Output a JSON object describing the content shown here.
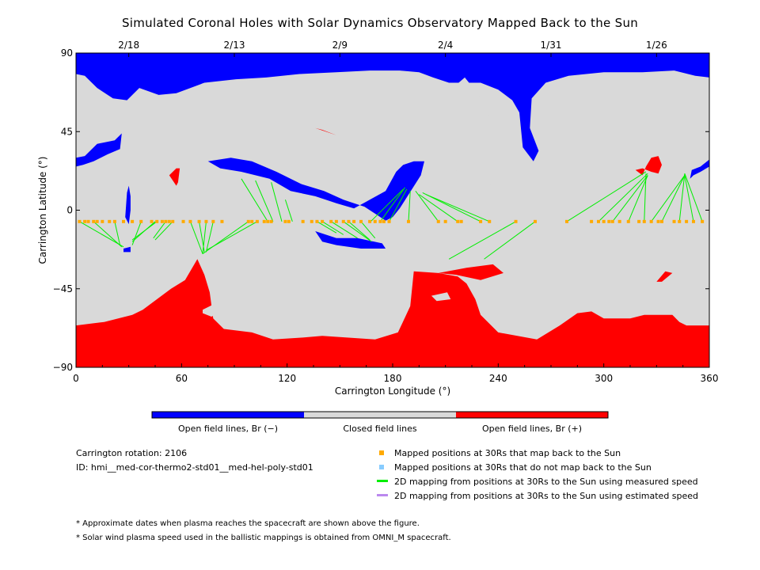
{
  "title": "Simulated Coronal Holes with Solar Dynamics Observatory Mapped Back to the Sun",
  "chart_data": {
    "type": "scatter",
    "xlabel": "Carrington Longitude (°)",
    "ylabel": "Carrington Latitude (°)",
    "xlim": [
      0,
      360
    ],
    "ylim": [
      -90,
      90
    ],
    "xticks": [
      "0",
      "60",
      "120",
      "180",
      "240",
      "300",
      "360"
    ],
    "yticks": [
      "90",
      "45",
      "0",
      "−45",
      "−90"
    ],
    "date_ticks": [
      {
        "lon": 30,
        "label": "2/18"
      },
      {
        "lon": 90,
        "label": "2/13"
      },
      {
        "lon": 150,
        "label": "2/9"
      },
      {
        "lon": 210,
        "label": "2/4"
      },
      {
        "lon": 270,
        "label": "1/31"
      },
      {
        "lon": 330,
        "label": "1/26"
      }
    ],
    "colors": {
      "open_negative": "#0000ff",
      "closed": "#d9d9d9",
      "open_positive": "#ff0000",
      "mapped_point": "#ffaa00",
      "unmapped_point": "#88ccff",
      "measured_line": "#00ee00",
      "estimated_line": "#bb88ee"
    },
    "colorbar": [
      "Open field lines, Br (−)",
      "Closed field lines",
      "Open field lines, Br (+)"
    ],
    "mapped_points_lat": -6.5,
    "mapped_points_lon": [
      2,
      5,
      7,
      10,
      12,
      15,
      19,
      22,
      27,
      32,
      37,
      43,
      46,
      49,
      51,
      53,
      55,
      61,
      65,
      70,
      74,
      78,
      83,
      98,
      100,
      103,
      107,
      109,
      111,
      119,
      121,
      129,
      134,
      137,
      140,
      145,
      148,
      152,
      155,
      158,
      162,
      167,
      170,
      173,
      175,
      178,
      189,
      206,
      210,
      217,
      219,
      230,
      235,
      250,
      261,
      279,
      293,
      297,
      300,
      303,
      305,
      309,
      314,
      320,
      323,
      327,
      331,
      333,
      340,
      343,
      347,
      351,
      356
    ],
    "measured_lines": [
      [
        2,
        -6.5,
        27,
        -21
      ],
      [
        10,
        -6.5,
        26,
        -21
      ],
      [
        22,
        -6.5,
        25,
        -20
      ],
      [
        37,
        -6.5,
        32,
        -20
      ],
      [
        45,
        -6.5,
        32,
        -18
      ],
      [
        46,
        -6.5,
        32,
        -17
      ],
      [
        51,
        -6.5,
        44,
        -16
      ],
      [
        55,
        -6.5,
        45,
        -17
      ],
      [
        65,
        -6.5,
        72,
        -25
      ],
      [
        70,
        -6.5,
        73,
        -24
      ],
      [
        74,
        -6.5,
        72,
        -25
      ],
      [
        78,
        -6.5,
        74,
        -24
      ],
      [
        98,
        -6.5,
        72,
        -25
      ],
      [
        103,
        -6.5,
        74,
        -23
      ],
      [
        94,
        18,
        109,
        -6.5
      ],
      [
        102,
        17,
        112,
        -6.5
      ],
      [
        111,
        16,
        117,
        -6.5
      ],
      [
        119,
        6,
        123,
        -6.5
      ],
      [
        137,
        -6.5,
        148,
        -13
      ],
      [
        140,
        -6.5,
        152,
        -14
      ],
      [
        145,
        -6.5,
        160,
        -16
      ],
      [
        152,
        -6.5,
        168,
        -18
      ],
      [
        155,
        -6.5,
        167,
        -17
      ],
      [
        162,
        -6.5,
        170,
        -16
      ],
      [
        186,
        12,
        167,
        -7
      ],
      [
        187,
        13,
        173,
        -6.5
      ],
      [
        188,
        12,
        178,
        -6.5
      ],
      [
        190,
        11,
        189,
        -6.5
      ],
      [
        193,
        11,
        206,
        -6.5
      ],
      [
        195,
        9,
        217,
        -6.5
      ],
      [
        197,
        10,
        230,
        -6.5
      ],
      [
        199,
        9,
        235,
        -6.5
      ],
      [
        212,
        -28,
        250,
        -6.5
      ],
      [
        232,
        -28,
        261,
        -6.5
      ],
      [
        324,
        22,
        279,
        -6.5
      ],
      [
        325,
        21,
        297,
        -6.5
      ],
      [
        325,
        20,
        305,
        -6.5
      ],
      [
        325,
        20,
        314,
        -6.5
      ],
      [
        324,
        21,
        323,
        -6.5
      ],
      [
        346,
        20,
        327,
        -6.5
      ],
      [
        346,
        20,
        333,
        -6.5
      ],
      [
        346,
        21,
        343,
        -6.5
      ],
      [
        346,
        20,
        351,
        -6.5
      ],
      [
        346,
        21,
        356,
        -6.5
      ]
    ],
    "regions": {
      "blue_north": [
        [
          0,
          90
        ],
        [
          360,
          90
        ],
        [
          360,
          76
        ],
        [
          352,
          77
        ],
        [
          340,
          80
        ],
        [
          322,
          79
        ],
        [
          300,
          79
        ],
        [
          280,
          77
        ],
        [
          267,
          73
        ],
        [
          259,
          64
        ],
        [
          258,
          47
        ],
        [
          263,
          34
        ],
        [
          260,
          28
        ],
        [
          254,
          36
        ],
        [
          252,
          56
        ],
        [
          248,
          63
        ],
        [
          240,
          69
        ],
        [
          230,
          73
        ],
        [
          212,
          73
        ],
        [
          203,
          76
        ],
        [
          195,
          79
        ],
        [
          184,
          80
        ],
        [
          167,
          80
        ],
        [
          148,
          79
        ],
        [
          127,
          78
        ],
        [
          108,
          76
        ],
        [
          91,
          75
        ],
        [
          73,
          73
        ],
        [
          57,
          67
        ],
        [
          47,
          66
        ],
        [
          36,
          70
        ],
        [
          29,
          63
        ],
        [
          21,
          64
        ],
        [
          12,
          70
        ],
        [
          5,
          77
        ],
        [
          0,
          78
        ]
      ],
      "blue_cut": [
        [
          221,
          76
        ],
        [
          229,
          66
        ],
        [
          236,
          50
        ],
        [
          246,
          36
        ],
        [
          247,
          25
        ],
        [
          240,
          16
        ],
        [
          232,
          13
        ],
        [
          224,
          14
        ],
        [
          219,
          22
        ],
        [
          212,
          24
        ],
        [
          205,
          23
        ],
        [
          198,
          22
        ],
        [
          194,
          23
        ],
        [
          191,
          27
        ],
        [
          188,
          35
        ],
        [
          184,
          41
        ],
        [
          176,
          43
        ],
        [
          167,
          44
        ],
        [
          168,
          48
        ],
        [
          178,
          52
        ],
        [
          187,
          56
        ],
        [
          196,
          60
        ],
        [
          206,
          66
        ],
        [
          214,
          70
        ],
        [
          221,
          76
        ]
      ],
      "blue_band": [
        [
          0,
          30
        ],
        [
          5,
          31
        ],
        [
          12,
          38
        ],
        [
          22,
          40
        ],
        [
          26,
          44
        ],
        [
          25,
          35
        ],
        [
          18,
          32
        ],
        [
          10,
          28
        ],
        [
          4,
          26
        ],
        [
          0,
          25
        ]
      ],
      "blue_diag": [
        [
          75,
          28
        ],
        [
          88,
          30
        ],
        [
          100,
          28
        ],
        [
          114,
          22
        ],
        [
          128,
          15
        ],
        [
          141,
          11
        ],
        [
          152,
          6
        ],
        [
          164,
          2
        ],
        [
          170,
          -2
        ],
        [
          176,
          -6
        ],
        [
          180,
          -4
        ],
        [
          184,
          1
        ],
        [
          196,
          20
        ],
        [
          198,
          28
        ],
        [
          192,
          28
        ],
        [
          186,
          26
        ],
        [
          182,
          22
        ],
        [
          176,
          11
        ],
        [
          167,
          6
        ],
        [
          158,
          1
        ],
        [
          148,
          4
        ],
        [
          136,
          8
        ],
        [
          122,
          11
        ],
        [
          110,
          18
        ],
        [
          94,
          22
        ],
        [
          82,
          24
        ],
        [
          75,
          28
        ]
      ],
      "blue_blob": [
        [
          136,
          -12
        ],
        [
          148,
          -16
        ],
        [
          160,
          -16
        ],
        [
          174,
          -19
        ],
        [
          176,
          -22
        ],
        [
          162,
          -22
        ],
        [
          148,
          -20
        ],
        [
          140,
          -18
        ],
        [
          136,
          -12
        ]
      ],
      "blue_spot": [
        [
          27,
          -22
        ],
        [
          31,
          -21
        ],
        [
          31,
          -24
        ],
        [
          27,
          -24
        ]
      ],
      "blue_thin": [
        [
          29,
          10
        ],
        [
          30,
          14
        ],
        [
          31,
          8
        ],
        [
          31,
          0
        ],
        [
          30,
          -8
        ],
        [
          28,
          -4
        ]
      ],
      "blue_east": [
        [
          350,
          23
        ],
        [
          355,
          25
        ],
        [
          360,
          29
        ],
        [
          360,
          25
        ],
        [
          355,
          22
        ],
        [
          351,
          20
        ],
        [
          349,
          18
        ]
      ],
      "red_south": [
        [
          0,
          -90
        ],
        [
          360,
          -90
        ],
        [
          360,
          -66
        ],
        [
          347,
          -66
        ],
        [
          343,
          -64
        ],
        [
          339,
          -60
        ],
        [
          331,
          -60
        ],
        [
          323,
          -60
        ],
        [
          315,
          -62
        ],
        [
          300,
          -62
        ],
        [
          293,
          -58
        ],
        [
          285,
          -59
        ],
        [
          275,
          -66
        ],
        [
          262,
          -74
        ],
        [
          240,
          -70
        ],
        [
          230,
          -60
        ],
        [
          227,
          -51
        ],
        [
          222,
          -42
        ],
        [
          217,
          -38
        ],
        [
          206,
          -36
        ],
        [
          192,
          -35
        ],
        [
          190,
          -55
        ],
        [
          183,
          -70
        ],
        [
          170,
          -74
        ],
        [
          155,
          -73
        ],
        [
          140,
          -72
        ],
        [
          128,
          -73
        ],
        [
          112,
          -74
        ],
        [
          100,
          -70
        ],
        [
          84,
          -68
        ],
        [
          78,
          -62
        ],
        [
          76,
          -47
        ],
        [
          73,
          -37
        ],
        [
          69,
          -28
        ],
        [
          62,
          -40
        ],
        [
          54,
          -45
        ],
        [
          46,
          -51
        ],
        [
          38,
          -57
        ],
        [
          32,
          -60
        ],
        [
          24,
          -62
        ],
        [
          16,
          -64
        ],
        [
          8,
          -65
        ],
        [
          0,
          -66
        ]
      ],
      "red_ne": [
        [
          318,
          23
        ],
        [
          322,
          20
        ],
        [
          324,
          25
        ],
        [
          327,
          30
        ],
        [
          331,
          31
        ],
        [
          333,
          26
        ],
        [
          331,
          21
        ],
        [
          327,
          22
        ],
        [
          322,
          24
        ]
      ],
      "red_mid": [
        [
          206,
          -36
        ],
        [
          222,
          -33
        ],
        [
          237,
          -31
        ],
        [
          243,
          -36
        ],
        [
          230,
          -40
        ],
        [
          216,
          -37
        ]
      ],
      "red_small_se": [
        [
          330,
          -41
        ],
        [
          335,
          -35
        ],
        [
          339,
          -36
        ],
        [
          333,
          -41
        ]
      ],
      "red_north": [
        [
          136,
          47
        ],
        [
          148,
          43
        ],
        [
          140,
          46
        ]
      ],
      "red_west": [
        [
          53,
          20
        ],
        [
          57,
          24
        ],
        [
          59,
          24
        ],
        [
          58,
          16
        ],
        [
          57,
          14
        ]
      ],
      "grey_hole": [
        [
          72,
          -57
        ],
        [
          78,
          -54
        ],
        [
          83,
          -58
        ],
        [
          77,
          -61
        ],
        [
          72,
          -59
        ]
      ],
      "grey_hole2": [
        [
          202,
          -49
        ],
        [
          211,
          -47
        ],
        [
          213,
          -51
        ],
        [
          205,
          -52
        ]
      ]
    }
  },
  "carrington_rotation": "Carrington rotation: 2106",
  "model_id": "ID: hmi__med-cor-thermo2-std01__med-hel-poly-std01",
  "legend": [
    "Mapped positions at 30Rs that map back to the Sun",
    "Mapped positions at 30Rs that do not map back to the Sun",
    "2D mapping from positions at 30Rs to the Sun using measured speed",
    "2D mapping from positions at 30Rs to the Sun using estimated speed"
  ],
  "notes": [
    "* Approximate dates when plasma reaches the spacecraft are shown above the figure.",
    "* Solar wind plasma speed used in the ballistic mappings is obtained from OMNI_M spacecraft."
  ]
}
